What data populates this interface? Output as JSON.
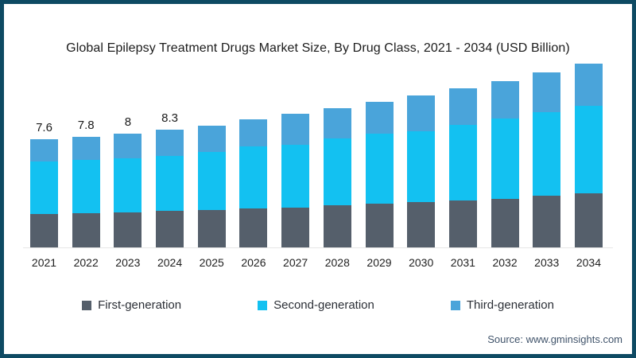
{
  "colors": {
    "frame_border": "#0e4a63",
    "first_generation": "#555f6b",
    "second_generation": "#13c1f1",
    "third_generation": "#4aa4da",
    "axis_line": "#e7e7e7"
  },
  "source": "Source: www.gminsights.com",
  "chart_data": {
    "type": "bar",
    "stacked": true,
    "title": "Global Epilepsy Treatment Drugs Market Size, By Drug Class, 2021 - 2034 (USD Billion)",
    "unit": "USD Billion",
    "y_axis_visible": false,
    "grid": false,
    "legend_position": "bottom",
    "categories": [
      "2021",
      "2022",
      "2023",
      "2024",
      "2025",
      "2026",
      "2027",
      "2028",
      "2029",
      "2030",
      "2031",
      "2032",
      "2033",
      "2034"
    ],
    "series": [
      {
        "name": "First-generation",
        "color": "#555f6b",
        "values": [
          2.35,
          2.4,
          2.45,
          2.55,
          2.65,
          2.75,
          2.8,
          2.95,
          3.1,
          3.2,
          3.3,
          3.4,
          3.65,
          3.8
        ]
      },
      {
        "name": "Second-generation",
        "color": "#13c1f1",
        "values": [
          3.7,
          3.75,
          3.85,
          3.9,
          4.05,
          4.35,
          4.45,
          4.7,
          4.9,
          5.0,
          5.35,
          5.7,
          5.85,
          6.2
        ]
      },
      {
        "name": "Third-generation",
        "color": "#4aa4da",
        "values": [
          1.55,
          1.65,
          1.7,
          1.85,
          1.9,
          1.9,
          2.15,
          2.15,
          2.25,
          2.5,
          2.55,
          2.6,
          2.85,
          2.95
        ]
      }
    ],
    "totals": [
      7.6,
      7.8,
      8.0,
      8.3,
      8.6,
      9.0,
      9.4,
      9.8,
      10.25,
      10.7,
      11.2,
      11.7,
      12.35,
      12.95
    ],
    "value_labels": [
      "7.6",
      "7.8",
      "8",
      "8.3",
      "",
      "",
      "",
      "",
      "",
      "",
      "",
      "",
      "",
      ""
    ]
  }
}
